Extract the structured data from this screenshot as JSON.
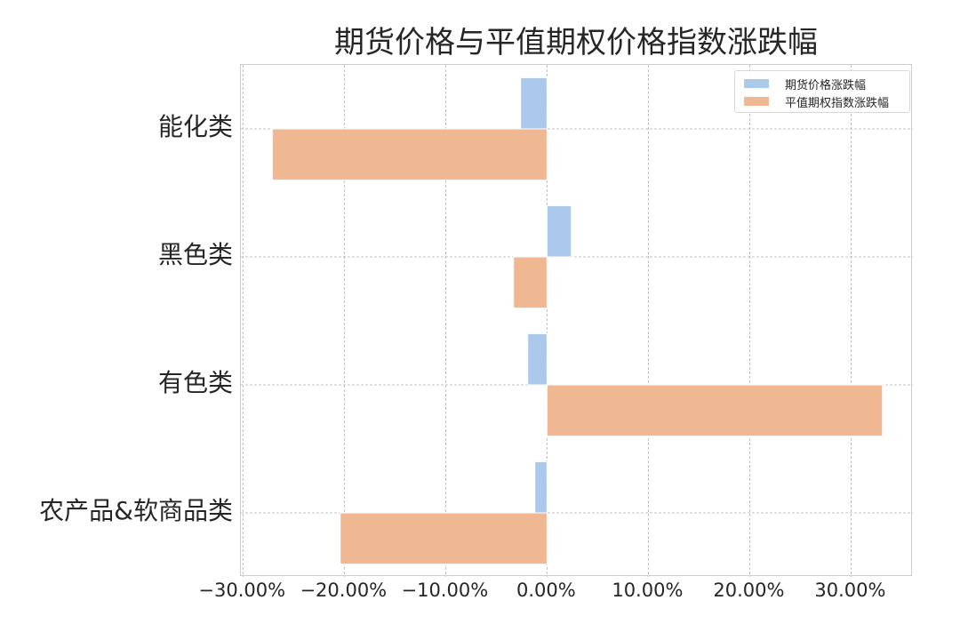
{
  "chart_data": {
    "type": "bar",
    "orientation": "horizontal",
    "title": "期货价格与平值期权价格指数涨跌幅",
    "xlabel": "",
    "ylabel": "",
    "categories": [
      "能化类",
      "黑色类",
      "有色类",
      "农产品&软商品类"
    ],
    "series": [
      {
        "name": "期货价格涨跌幅",
        "color": "#abc9ea",
        "values": [
          -2.6,
          2.4,
          -1.9,
          -1.2
        ]
      },
      {
        "name": "平值期权指数涨跌幅",
        "color": "#efb792",
        "values": [
          -27.1,
          -3.3,
          33.1,
          -20.4
        ]
      }
    ],
    "value_unit": "%",
    "xlim": [
      -30.2,
      36.1
    ],
    "xticks": [
      -30,
      -20,
      -10,
      0,
      10,
      20,
      30
    ],
    "xtick_labels": [
      "−30.00%",
      "−20.00%",
      "−10.00%",
      "0.00%",
      "10.00%",
      "20.00%",
      "30.00%"
    ],
    "grid": true,
    "grid_style": "dashed",
    "legend_position": "upper right"
  },
  "title": "期货价格与平值期权价格指数涨跌幅",
  "legend": {
    "items": [
      {
        "label": "期货价格涨跌幅",
        "color": "#abc9ea"
      },
      {
        "label": "平值期权指数涨跌幅",
        "color": "#efb792"
      }
    ]
  },
  "y_axis": {
    "labels": [
      "能化类",
      "黑色类",
      "有色类",
      "农产品&软商品类"
    ]
  },
  "x_axis": {
    "labels": [
      "−30.00%",
      "−20.00%",
      "−10.00%",
      "0.00%",
      "10.00%",
      "20.00%",
      "30.00%"
    ]
  }
}
